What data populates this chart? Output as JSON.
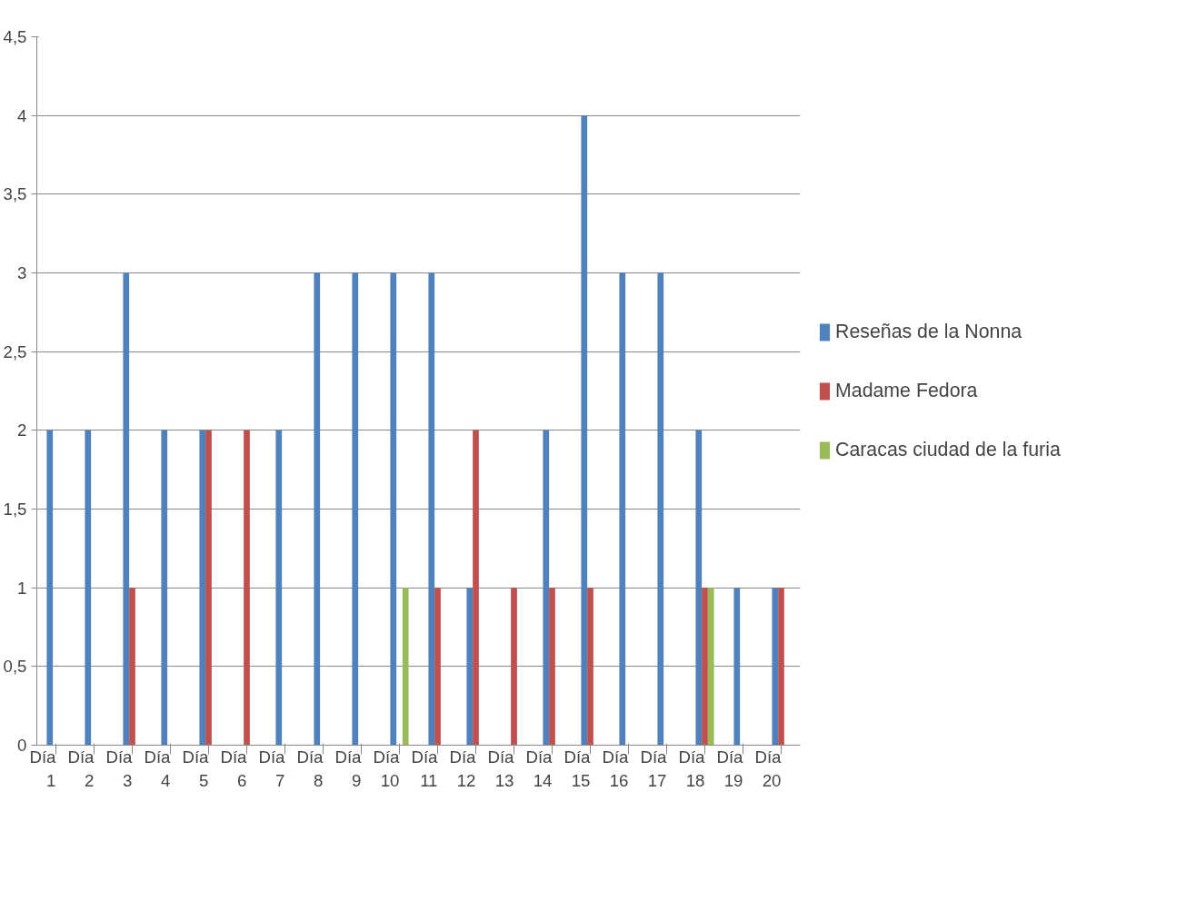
{
  "chart_data": {
    "type": "bar",
    "categories": [
      "Día 1",
      "Día 2",
      "Día 3",
      "Día 4",
      "Día 5",
      "Día 6",
      "Día 7",
      "Día 8",
      "Día 9",
      "Día 10",
      "Día 11",
      "Día 12",
      "Día 13",
      "Día 14",
      "Día 15",
      "Día 16",
      "Día 17",
      "Día 18",
      "Día 19",
      "Día 20"
    ],
    "series": [
      {
        "name": "Reseñas de la Nonna",
        "color": "#4f81bd",
        "values": [
          2,
          2,
          3,
          2,
          2,
          0,
          2,
          3,
          3,
          3,
          3,
          1,
          0,
          2,
          4,
          3,
          3,
          2,
          1,
          1
        ]
      },
      {
        "name": "Madame Fedora",
        "color": "#c0504d",
        "values": [
          0,
          0,
          1,
          0,
          2,
          2,
          0,
          0,
          0,
          0,
          1,
          2,
          1,
          1,
          1,
          0,
          0,
          1,
          0,
          1
        ]
      },
      {
        "name": "Caracas ciudad de la furia",
        "color": "#9bbb59",
        "values": [
          0,
          0,
          0,
          0,
          0,
          0,
          0,
          0,
          0,
          1,
          0,
          0,
          0,
          0,
          0,
          0,
          0,
          1,
          0,
          0
        ]
      }
    ],
    "ylim": [
      0,
      4.5
    ],
    "yticks": [
      0,
      {
        "value": 0.5,
        "label": "0,5"
      },
      1,
      {
        "value": 1.5,
        "label": "1,5"
      },
      2,
      {
        "value": 2.5,
        "label": "2,5"
      },
      3,
      {
        "value": 3.5,
        "label": "3,5"
      },
      4,
      {
        "value": 4.5,
        "label": "4,5"
      }
    ],
    "grid": "y",
    "legend": "right"
  }
}
